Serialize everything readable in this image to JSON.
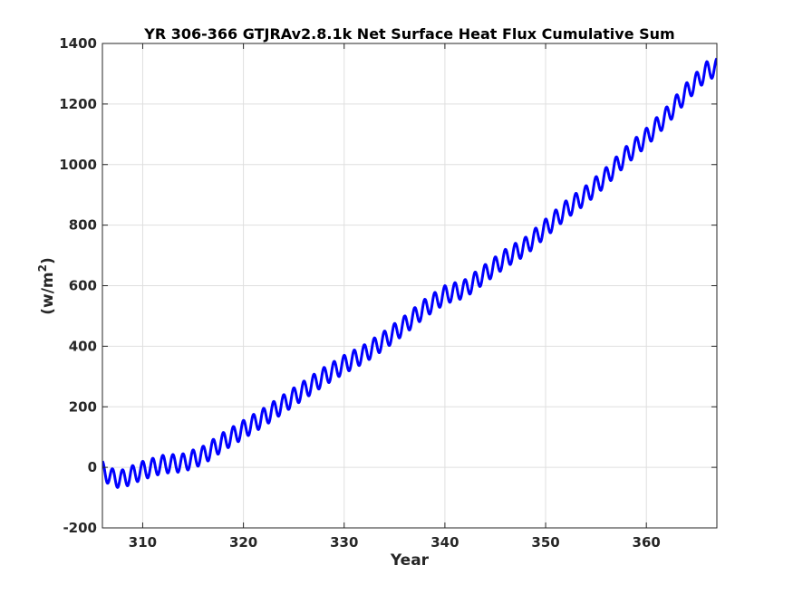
{
  "chart_data": {
    "type": "line",
    "title": "YR 306-366 GTJRAv2.8.1k Net Surface Heat Flux  Cumulative Sum",
    "xlabel": "Year",
    "ylabel_base": "(w/m",
    "ylabel_sup": "2",
    "ylabel_close": ")",
    "xlim": [
      306,
      367
    ],
    "ylim": [
      -200,
      1400
    ],
    "x_ticks": [
      310,
      320,
      330,
      340,
      350,
      360
    ],
    "y_ticks": [
      -200,
      0,
      200,
      400,
      600,
      800,
      1000,
      1200,
      1400
    ],
    "grid": true,
    "legend": "none",
    "seasonal_amplitude": 30,
    "series": [
      {
        "color": "#0000ff",
        "trend": {
          "x": [
            306,
            307,
            308,
            310,
            312,
            314,
            316,
            318,
            320,
            322,
            324,
            326,
            328,
            330,
            332,
            334,
            336,
            338,
            340,
            342,
            344,
            346,
            348,
            350,
            352,
            354,
            356,
            358,
            360,
            362,
            364,
            366,
            367
          ],
          "y": [
            -10,
            -35,
            -38,
            -10,
            10,
            15,
            40,
            85,
            125,
            165,
            210,
            255,
            300,
            340,
            375,
            420,
            470,
            525,
            570,
            590,
            640,
            690,
            730,
            790,
            850,
            900,
            960,
            1030,
            1090,
            1160,
            1240,
            1310,
            1320
          ]
        }
      }
    ]
  }
}
